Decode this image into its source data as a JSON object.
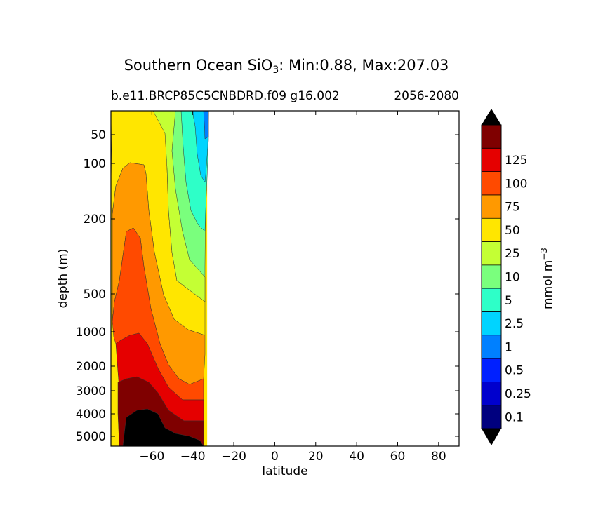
{
  "chart_data": {
    "type": "contourf",
    "title_prefix": "Southern Ocean SiO",
    "title_sub": "3",
    "title_suffix": ": Min:0.88, Max:207.03",
    "subtitle_left": "b.e11.BRCP85C5CNBDRD.f09 g16.002",
    "subtitle_right": "2056-2080",
    "xlabel": "latitude",
    "ylabel": "depth (m)",
    "xlim": [
      -80,
      90
    ],
    "ylim_depth": [
      5500,
      20
    ],
    "y_scale": "log-like (depth)",
    "x_ticks": [
      {
        "value": -60,
        "label": "−60"
      },
      {
        "value": -40,
        "label": "−40"
      },
      {
        "value": -20,
        "label": "−20"
      },
      {
        "value": 0,
        "label": "0"
      },
      {
        "value": 20,
        "label": "20"
      },
      {
        "value": 40,
        "label": "40"
      },
      {
        "value": 60,
        "label": "60"
      },
      {
        "value": 80,
        "label": "80"
      }
    ],
    "y_ticks": [
      {
        "value": 50,
        "label": "50"
      },
      {
        "value": 100,
        "label": "100"
      },
      {
        "value": 200,
        "label": "200"
      },
      {
        "value": 500,
        "label": "500"
      },
      {
        "value": 1000,
        "label": "1000"
      },
      {
        "value": 2000,
        "label": "2000"
      },
      {
        "value": 3000,
        "label": "3000"
      },
      {
        "value": 4000,
        "label": "4000"
      },
      {
        "value": 5000,
        "label": "5000"
      }
    ],
    "colorbar": {
      "label_main": "mmol m",
      "label_exp": "−3",
      "extend": "both",
      "levels": [
        "0.1",
        "0.25",
        "0.5",
        "1",
        "2.5",
        "5",
        "10",
        "25",
        "50",
        "75",
        "100",
        "125"
      ],
      "colors": [
        "#00007f",
        "#0000cd",
        "#0020ff",
        "#0080ff",
        "#00d4ff",
        "#2effc8",
        "#7aff7d",
        "#c4ff34",
        "#ffe600",
        "#ff9900",
        "#ff4a00",
        "#e50000",
        "#7f0000"
      ],
      "over_color": "#000000",
      "under_color": "#000000"
    },
    "data_extent_lat": [
      -80,
      -33
    ],
    "land_color": "#000000"
  }
}
